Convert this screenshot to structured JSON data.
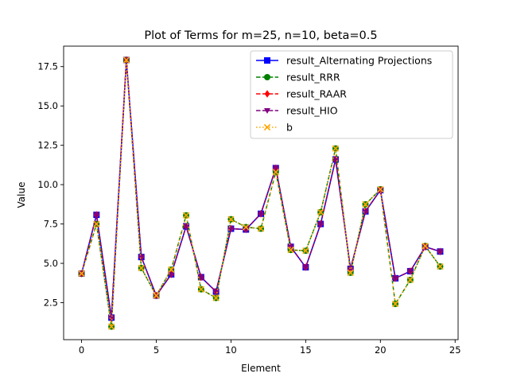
{
  "chart_data": {
    "type": "line",
    "title": "Plot of Terms for m=25, n=10, beta=0.5",
    "xlabel": "Element",
    "ylabel": "Value",
    "xlim": [
      -1.2,
      25.2
    ],
    "ylim": [
      0.15,
      18.8
    ],
    "xticks": [
      0,
      5,
      10,
      15,
      20,
      25
    ],
    "xtick_labels": [
      "0",
      "5",
      "10",
      "15",
      "20",
      "25"
    ],
    "yticks": [
      2.5,
      5.0,
      7.5,
      10.0,
      12.5,
      15.0,
      17.5
    ],
    "ytick_labels": [
      "2.5",
      "5.0",
      "7.5",
      "10.0",
      "12.5",
      "15.0",
      "17.5"
    ],
    "grid": false,
    "legend_position": "top-right",
    "x": [
      0,
      1,
      2,
      3,
      4,
      5,
      6,
      7,
      8,
      9,
      10,
      11,
      12,
      13,
      14,
      15,
      16,
      17,
      18,
      19,
      20,
      21,
      22,
      23,
      24
    ],
    "series": [
      {
        "name": "result_Alternating Projections",
        "color": "#0000ff",
        "linestyle": "solid",
        "marker": "square",
        "values": [
          4.35,
          8.08,
          1.55,
          17.92,
          5.4,
          2.95,
          4.3,
          7.35,
          4.12,
          3.2,
          7.2,
          7.15,
          8.15,
          11.05,
          6.05,
          4.75,
          7.5,
          11.6,
          4.65,
          8.3,
          9.65,
          4.05,
          4.5,
          6.05,
          5.75
        ]
      },
      {
        "name": "result_RRR",
        "color": "#008000",
        "linestyle": "dashed",
        "marker": "circle",
        "values": [
          4.35,
          7.5,
          0.98,
          17.92,
          4.7,
          2.95,
          4.6,
          8.05,
          3.35,
          2.8,
          7.8,
          7.3,
          7.2,
          10.8,
          5.85,
          5.8,
          8.25,
          12.3,
          4.4,
          8.75,
          9.7,
          2.42,
          3.95,
          6.1,
          4.8
        ]
      },
      {
        "name": "result_RAAR",
        "color": "#ff0000",
        "linestyle": "dashed",
        "marker": "diamond",
        "values": [
          4.35,
          8.08,
          1.55,
          17.92,
          5.4,
          2.95,
          4.3,
          7.35,
          4.12,
          3.2,
          7.2,
          7.15,
          8.15,
          11.05,
          6.05,
          4.75,
          7.5,
          11.6,
          4.65,
          8.3,
          9.65,
          4.05,
          4.5,
          6.05,
          5.75
        ]
      },
      {
        "name": "result_HIO",
        "color": "#800080",
        "linestyle": "dashed",
        "marker": "triangle-down",
        "values": [
          4.35,
          8.08,
          1.55,
          17.92,
          5.4,
          2.95,
          4.3,
          7.35,
          4.12,
          3.2,
          7.2,
          7.15,
          8.15,
          11.05,
          6.05,
          4.75,
          7.5,
          11.6,
          4.65,
          8.3,
          9.65,
          4.05,
          4.5,
          6.05,
          5.75
        ]
      },
      {
        "name": "b",
        "color": "#ffa500",
        "linestyle": "dotted",
        "marker": "x",
        "values": [
          4.35,
          7.5,
          0.98,
          17.92,
          4.7,
          2.95,
          4.6,
          8.05,
          3.35,
          2.8,
          7.8,
          7.3,
          7.2,
          10.8,
          5.85,
          5.8,
          8.25,
          12.3,
          4.4,
          8.75,
          9.7,
          2.42,
          3.95,
          6.1,
          4.8
        ]
      }
    ]
  }
}
